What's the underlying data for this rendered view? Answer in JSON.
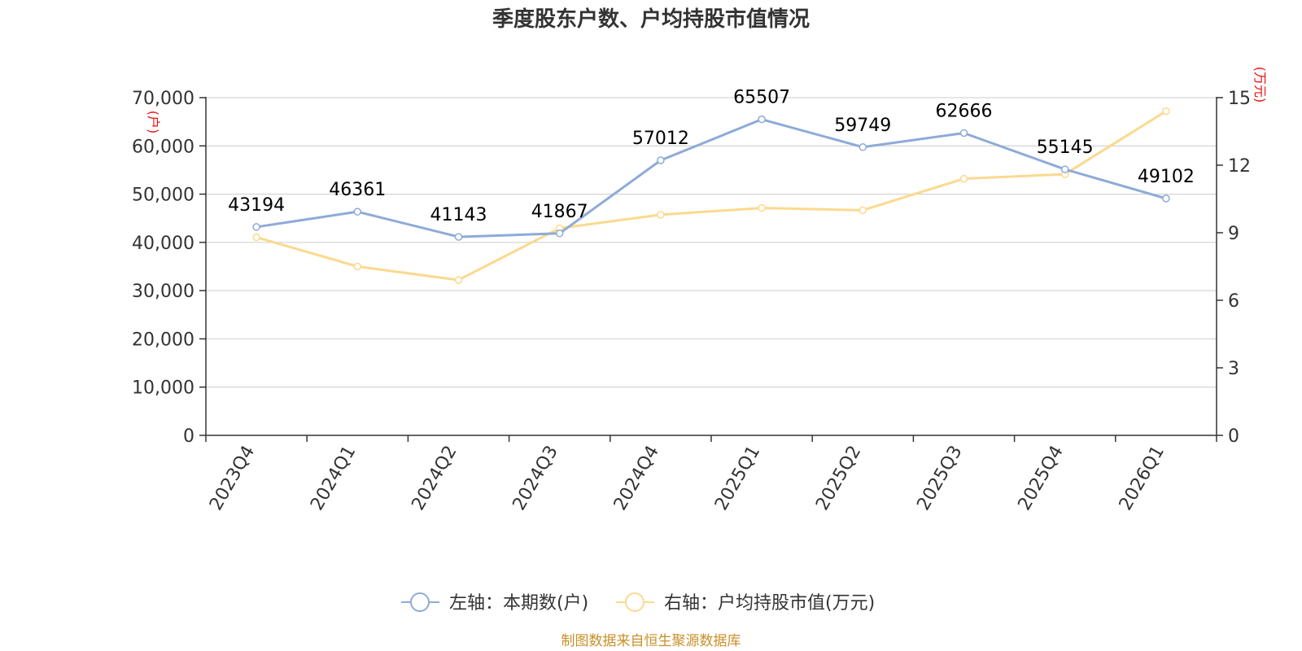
{
  "chart_data": {
    "type": "line",
    "title": "季度股东户数、户均持股市值情况",
    "categories": [
      "2023Q4",
      "2024Q1",
      "2024Q2",
      "2024Q3",
      "2024Q4",
      "2025Q1",
      "2025Q2",
      "2025Q3",
      "2025Q4",
      "2026Q1"
    ],
    "y_left": {
      "unit": "(户)",
      "ylim": [
        0,
        70000
      ],
      "ticks": [
        "0",
        "10,000",
        "20,000",
        "30,000",
        "40,000",
        "50,000",
        "60,000",
        "70,000"
      ]
    },
    "y_right": {
      "unit": "(万元)",
      "ylim": [
        0,
        15
      ],
      "ticks": [
        "0",
        "3",
        "6",
        "9",
        "12",
        "15"
      ]
    },
    "grid": true,
    "legend_position": "bottom",
    "series": [
      {
        "name": "左轴：本期数(户)",
        "axis": "left",
        "color": "#8eaad8",
        "values": [
          43194,
          46361,
          41143,
          41867,
          57012,
          65507,
          59749,
          62666,
          55145,
          49102
        ],
        "labels": [
          "43194",
          "46361",
          "41143",
          "41867",
          "57012",
          "65507",
          "59749",
          "62666",
          "55145",
          "49102"
        ]
      },
      {
        "name": "右轴：户均持股市值(万元)",
        "axis": "right",
        "color": "#fbd98e",
        "values": [
          8.8,
          7.5,
          6.9,
          9.2,
          9.8,
          10.1,
          10.0,
          11.4,
          11.6,
          14.4
        ]
      }
    ],
    "source": "制图数据来自恒生聚源数据库"
  }
}
